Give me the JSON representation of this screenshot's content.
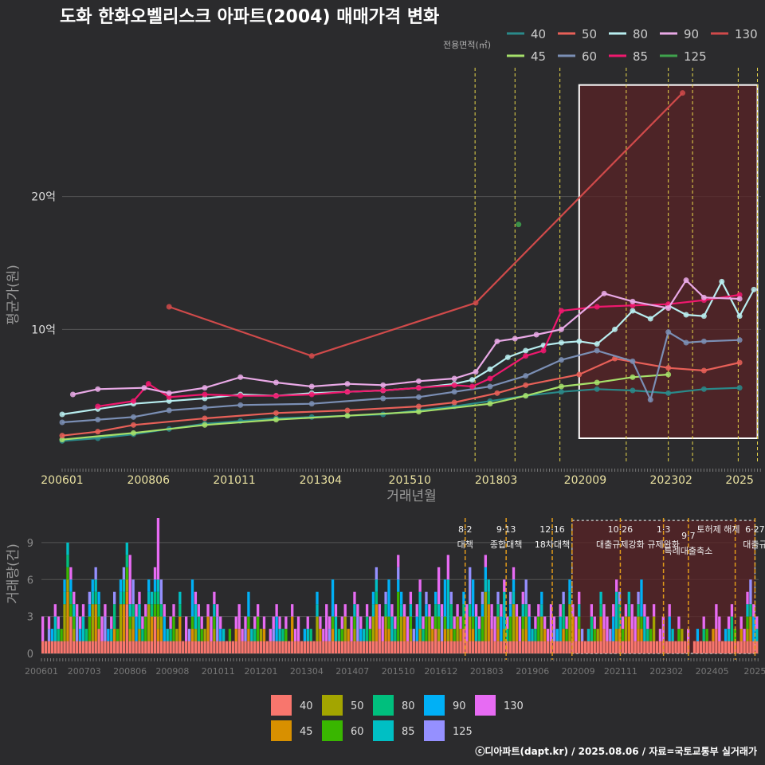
{
  "title": "도화 한화오벨리스크 아파트(2004) 매매가격 변화",
  "legend_title": "전용면적(㎡)",
  "footer": "ⓒ디아파트(dapt.kr) / 2025.08.06 / 자료=국토교통부 실거래가",
  "colors": {
    "background": "#2b2b2d",
    "line_series": {
      "40": "#2a8a8a",
      "45": "#a6e06a",
      "50": "#e86058",
      "60": "#7b8fb5",
      "80": "#b8eef0",
      "85": "#f0186e",
      "90": "#e9a9e6",
      "125": "#3fa34d",
      "130": "#d04a4a"
    },
    "bar_series": {
      "40": "#f8766d",
      "45": "#d89000",
      "50": "#a3a500",
      "60": "#39b600",
      "80": "#00bf7d",
      "85": "#00bfc4",
      "90": "#00b0f6",
      "125": "#9590ff",
      "130": "#e76bf3"
    },
    "policy_line": "#e8d84a",
    "bar_policy_line": "#e09a1a",
    "highlight_box": "#ffffff",
    "highlight_fill": "#5a2326"
  },
  "chart_data": [
    {
      "type": "line",
      "name": "price",
      "xlabel": "거래년월",
      "ylabel": "평균가(원)",
      "x_tick_labels": [
        "200601",
        "200806",
        "201011",
        "201304",
        "201510",
        "201803",
        "202009",
        "202302",
        "2025"
      ],
      "x_tick_values": [
        2006.0,
        2008.42,
        2010.83,
        2013.25,
        2015.75,
        2018.17,
        2020.67,
        2023.08,
        2025.0
      ],
      "xlim": [
        2006.0,
        2025.6
      ],
      "y_tick_labels": [
        "10억",
        "20억"
      ],
      "y_tick_values": [
        10,
        20
      ],
      "ylim": [
        0,
        30
      ],
      "y_unit": "억",
      "policy_dates": [
        2017.58,
        2018.7,
        2019.96,
        2021.82,
        2023.0,
        2023.68,
        2024.96,
        2025.5
      ],
      "highlight": {
        "x0": 2020.5,
        "x1": 2025.5,
        "y0": 1.8,
        "y1": 28.4
      },
      "legend": [
        "40",
        "45",
        "50",
        "60",
        "80",
        "85",
        "90",
        "125",
        "130"
      ],
      "series": [
        {
          "name": "40",
          "x": [
            2006.0,
            2007.0,
            2008.0,
            2009.0,
            2010.0,
            2011.0,
            2012.0,
            2013.0,
            2014.0,
            2015.0,
            2016.0,
            2017.0,
            2018.0,
            2019.0,
            2020.0,
            2021.0,
            2022.0,
            2023.0,
            2024.0,
            2025.0
          ],
          "y": [
            1.6,
            1.8,
            2.1,
            2.5,
            2.9,
            3.1,
            3.3,
            3.4,
            3.5,
            3.6,
            3.9,
            4.2,
            4.6,
            5.0,
            5.3,
            5.5,
            5.4,
            5.2,
            5.5,
            5.6
          ]
        },
        {
          "name": "45",
          "x": [
            2006.0,
            2008.0,
            2010.0,
            2012.0,
            2014.0,
            2016.0,
            2018.0,
            2019.0,
            2020.0,
            2021.0,
            2022.0,
            2023.0
          ],
          "y": [
            1.7,
            2.2,
            2.8,
            3.2,
            3.5,
            3.8,
            4.4,
            5.0,
            5.7,
            6.0,
            6.4,
            6.6
          ]
        },
        {
          "name": "50",
          "x": [
            2006.0,
            2007.0,
            2008.0,
            2010.0,
            2012.0,
            2014.0,
            2016.0,
            2017.0,
            2018.2,
            2019.0,
            2020.5,
            2021.5,
            2023.0,
            2024.0,
            2025.0
          ],
          "y": [
            2.0,
            2.3,
            2.8,
            3.3,
            3.7,
            3.9,
            4.2,
            4.5,
            5.2,
            5.8,
            6.6,
            7.8,
            7.1,
            6.9,
            7.5
          ]
        },
        {
          "name": "60",
          "x": [
            2006.0,
            2007.0,
            2008.0,
            2009.0,
            2010.0,
            2011.0,
            2013.0,
            2015.0,
            2016.0,
            2017.0,
            2018.0,
            2019.0,
            2020.0,
            2021.0,
            2022.0,
            2022.5,
            2023.0,
            2023.5,
            2024.0,
            2025.0
          ],
          "y": [
            3.0,
            3.2,
            3.4,
            3.9,
            4.1,
            4.3,
            4.4,
            4.8,
            4.9,
            5.3,
            5.7,
            6.5,
            7.7,
            8.4,
            7.6,
            4.7,
            9.8,
            9.0,
            9.1,
            9.2
          ]
        },
        {
          "name": "80",
          "x": [
            2006.0,
            2007.0,
            2008.0,
            2009.0,
            2010.0,
            2011.0,
            2012.0,
            2013.0,
            2014.0,
            2015.0,
            2016.0,
            2017.0,
            2017.5,
            2018.0,
            2018.5,
            2019.0,
            2019.5,
            2020.0,
            2020.5,
            2021.0,
            2021.5,
            2022.0,
            2022.5,
            2023.0,
            2023.5,
            2024.0,
            2024.5,
            2025.0,
            2025.4
          ],
          "y": [
            3.6,
            4.0,
            4.4,
            4.6,
            4.8,
            5.1,
            5.0,
            5.2,
            5.3,
            5.4,
            5.6,
            5.9,
            6.2,
            7.0,
            7.9,
            8.4,
            8.8,
            9.0,
            9.1,
            8.9,
            10.0,
            11.4,
            10.8,
            11.8,
            11.1,
            11.0,
            13.6,
            11.0,
            13.0
          ]
        },
        {
          "name": "85",
          "x": [
            2007.0,
            2008.0,
            2008.42,
            2009.0,
            2010.0,
            2011.0,
            2012.0,
            2013.0,
            2014.0,
            2015.0,
            2016.0,
            2017.0,
            2017.5,
            2018.0,
            2019.0,
            2019.5,
            2020.0,
            2021.0,
            2022.0,
            2023.0,
            2024.0,
            2025.0
          ],
          "y": [
            4.2,
            4.6,
            5.9,
            4.9,
            5.1,
            5.0,
            5.0,
            5.1,
            5.3,
            5.4,
            5.6,
            5.8,
            5.7,
            6.3,
            8.0,
            8.4,
            11.4,
            11.7,
            11.8,
            11.9,
            12.2,
            12.6
          ]
        },
        {
          "name": "90",
          "x": [
            2006.3,
            2007.0,
            2008.3,
            2009.0,
            2010.0,
            2011.0,
            2012.0,
            2013.0,
            2014.0,
            2015.0,
            2016.0,
            2017.0,
            2017.6,
            2018.2,
            2018.7,
            2019.3,
            2020.0,
            2021.2,
            2022.0,
            2023.0,
            2023.5,
            2024.0,
            2025.0
          ],
          "y": [
            5.1,
            5.5,
            5.6,
            5.2,
            5.6,
            6.4,
            6.0,
            5.7,
            5.9,
            5.8,
            6.1,
            6.3,
            6.8,
            9.1,
            9.3,
            9.6,
            10.0,
            12.7,
            12.1,
            11.6,
            13.7,
            12.4,
            12.3
          ]
        },
        {
          "name": "125",
          "x": [
            2018.8
          ],
          "y": [
            17.9
          ]
        },
        {
          "name": "130",
          "x": [
            2009.0,
            2013.0,
            2017.6,
            2023.4
          ],
          "y": [
            11.7,
            8.0,
            12.0,
            27.8
          ]
        }
      ]
    },
    {
      "type": "bar",
      "name": "volume",
      "ylabel": "거래량(건)",
      "x_tick_labels": [
        "200601",
        "200703",
        "200806",
        "200908",
        "201011",
        "201201",
        "201304",
        "201407",
        "201510",
        "201612",
        "201803",
        "201906",
        "202009",
        "202111",
        "202302",
        "202405",
        "2025"
      ],
      "y_tick_labels": [
        "0",
        "3",
        "6",
        "9"
      ],
      "y_tick_values": [
        0,
        3,
        6,
        9
      ],
      "ylim": [
        0,
        11
      ],
      "legend": [
        "40",
        "45",
        "50",
        "60",
        "80",
        "85",
        "90",
        "125",
        "130"
      ],
      "highlight": {
        "x0": 2020.5,
        "x1": 2025.5,
        "y0": 0,
        "y1": 10.8
      },
      "policy_dates": [
        2017.58,
        2018.7,
        2019.96,
        2020.5,
        2021.82,
        2023.0,
        2023.68,
        2024.96,
        2025.5
      ],
      "annotations": [
        {
          "date": "8·2",
          "label": "대책",
          "x": 2017.58
        },
        {
          "date": "9·13",
          "label": "종합대책",
          "x": 2018.7
        },
        {
          "date": "12·16",
          "label": "18차대책",
          "x": 2019.96
        },
        {
          "date": "10·26",
          "label": "대출규제강화",
          "x": 2021.82
        },
        {
          "date": "1·3",
          "label": "규제완화",
          "x": 2023.0
        },
        {
          "date": "9·7",
          "label": "특례대출축소",
          "x": 2023.68
        },
        {
          "date": "토허제 해제",
          "label": "",
          "x": 2024.5
        },
        {
          "date": "6·27",
          "label": "대출규",
          "x": 2025.5
        }
      ],
      "monthly": [
        3,
        1,
        3,
        2,
        4,
        3,
        2,
        6,
        9,
        7,
        5,
        4,
        3,
        4,
        2,
        5,
        6,
        7,
        5,
        3,
        4,
        2,
        3,
        5,
        2,
        6,
        7,
        9,
        8,
        6,
        4,
        5,
        3,
        4,
        6,
        5,
        7,
        11,
        6,
        4,
        2,
        3,
        4,
        2,
        5,
        1,
        3,
        2,
        6,
        5,
        4,
        3,
        2,
        4,
        3,
        5,
        4,
        3,
        2,
        1,
        2,
        1,
        3,
        4,
        2,
        3,
        5,
        2,
        3,
        4,
        2,
        3,
        1,
        2,
        3,
        4,
        3,
        2,
        3,
        1,
        4,
        2,
        3,
        1,
        2,
        3,
        2,
        1,
        5,
        3,
        2,
        4,
        3,
        6,
        4,
        2,
        3,
        4,
        2,
        3,
        5,
        4,
        3,
        2,
        4,
        3,
        5,
        7,
        4,
        3,
        5,
        6,
        4,
        3,
        8,
        5,
        4,
        3,
        5,
        2,
        4,
        6,
        3,
        5,
        4,
        3,
        5,
        7,
        4,
        6,
        8,
        5,
        3,
        4,
        3,
        5,
        4,
        7,
        6,
        4,
        3,
        5,
        8,
        6,
        4,
        3,
        5,
        4,
        6,
        3,
        5,
        7,
        4,
        3,
        5,
        6,
        4,
        2,
        3,
        4,
        5,
        3,
        2,
        4,
        3,
        2,
        4,
        5,
        3,
        6,
        4,
        3,
        5,
        2,
        1,
        2,
        4,
        3,
        2,
        5,
        4,
        3,
        2,
        4,
        6,
        5,
        3,
        4,
        5,
        4,
        3,
        5,
        6,
        4,
        3,
        2,
        4,
        1,
        2,
        3,
        1,
        4,
        2,
        1,
        3,
        2,
        1,
        2,
        0,
        1,
        2,
        1,
        3,
        2,
        1,
        2,
        4,
        3,
        1,
        2,
        3,
        4,
        2,
        1,
        3,
        2,
        5,
        6,
        4,
        3
      ]
    }
  ]
}
